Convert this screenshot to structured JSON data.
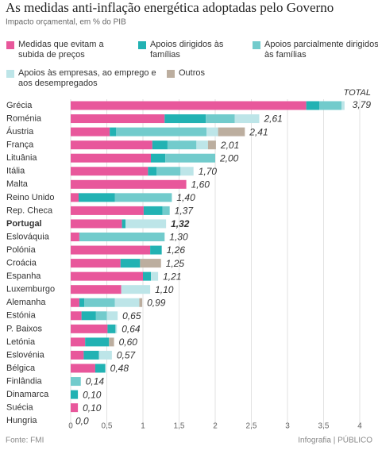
{
  "chart_data": {
    "type": "stacked-bar-horizontal",
    "title": "As medidas anti-inflação energética adoptadas pelo Governo",
    "subtitle": "Impacto orçamental, em % do PIB",
    "categories": [
      "Grécia",
      "Roménia",
      "Áustria",
      "França",
      "Lituânia",
      "Itália",
      "Malta",
      "Reino Unido",
      "Rep. Checa",
      "Portugal",
      "Eslováquia",
      "Polónia",
      "Croácia",
      "Espanha",
      "Luxemburgo",
      "Alemanha",
      "Estónia",
      "P. Baixos",
      "Letónia",
      "Eslovénia",
      "Bélgica",
      "Finlândia",
      "Dinamarca",
      "Suécia",
      "Hungria"
    ],
    "highlight_index": 9,
    "series": [
      {
        "name": "Medidas que evitam a subida de preços",
        "color": "#e8579b",
        "values": [
          3.26,
          1.3,
          0.54,
          1.13,
          1.11,
          1.07,
          1.6,
          0.11,
          1.01,
          0.71,
          0.12,
          1.1,
          0.69,
          1.0,
          0.7,
          0.12,
          0.15,
          0.51,
          0.2,
          0.18,
          0.34,
          0,
          0,
          0.1,
          0
        ]
      },
      {
        "name": "Apoios dirigidos às famílias",
        "color": "#22b2b3",
        "values": [
          0.18,
          0.57,
          0.09,
          0.21,
          0.2,
          0.12,
          0,
          0.5,
          0.26,
          0.05,
          0,
          0.16,
          0.27,
          0.11,
          0,
          0.07,
          0.2,
          0.11,
          0.33,
          0.21,
          0.14,
          0,
          0.1,
          0,
          0
        ]
      },
      {
        "name": "Apoios parcialmente dirigidos às famílias",
        "color": "#72cbcc",
        "values": [
          0.31,
          0.4,
          1.25,
          0.4,
          0.69,
          0.33,
          0,
          0.79,
          0.1,
          0,
          1.18,
          0,
          0,
          0,
          0,
          0.42,
          0.15,
          0,
          0,
          0,
          0,
          0.14,
          0,
          0,
          0
        ]
      },
      {
        "name": "Apoios às empresas, ao emprego e aos desempregados",
        "color": "#bde5e8",
        "values": [
          0.04,
          0.34,
          0.16,
          0.16,
          0,
          0.18,
          0,
          0,
          0,
          0.56,
          0,
          0,
          0,
          0.1,
          0.4,
          0.34,
          0.15,
          0.02,
          0,
          0.18,
          0,
          0,
          0,
          0,
          0
        ]
      },
      {
        "name": "Outros",
        "color": "#bcae9f",
        "values": [
          0,
          0,
          0.37,
          0.11,
          0,
          0,
          0,
          0,
          0,
          0,
          0,
          0,
          0.29,
          0,
          0,
          0.04,
          0,
          0,
          0.07,
          0,
          0,
          0,
          0,
          0,
          0
        ]
      }
    ],
    "totals": {
      "name": "TOTAL",
      "values": [
        3.79,
        2.61,
        2.41,
        2.01,
        2.0,
        1.7,
        1.6,
        1.4,
        1.37,
        1.32,
        1.3,
        1.26,
        1.25,
        1.21,
        1.1,
        0.99,
        0.65,
        0.64,
        0.6,
        0.57,
        0.48,
        0.14,
        0.1,
        0.1,
        0
      ],
      "value_labels": [
        "3,79",
        "2,61",
        "2,41",
        "2,01",
        "2,00",
        "1,70",
        "1,60",
        "1,40",
        "1,37",
        "1,32",
        "1,30",
        "1,26",
        "1,25",
        "1,21",
        "1,10",
        "0,99",
        "0,65",
        "0,64",
        "0,60",
        "0,57",
        "0,48",
        "0,14",
        "0,10",
        "0,10",
        "0,0"
      ]
    },
    "xlim": [
      0,
      4
    ],
    "xticks": [
      0,
      {
        "value": 0.5,
        "label": "0,5"
      },
      1,
      {
        "value": 1.5,
        "label": "1,5"
      },
      2,
      {
        "value": 2.5,
        "label": "2,5"
      },
      3,
      {
        "value": 3.5,
        "label": "3,5"
      },
      4
    ],
    "grid": true,
    "source": "Fonte: FMI",
    "credit": "Infografia | PÚBLICO"
  }
}
